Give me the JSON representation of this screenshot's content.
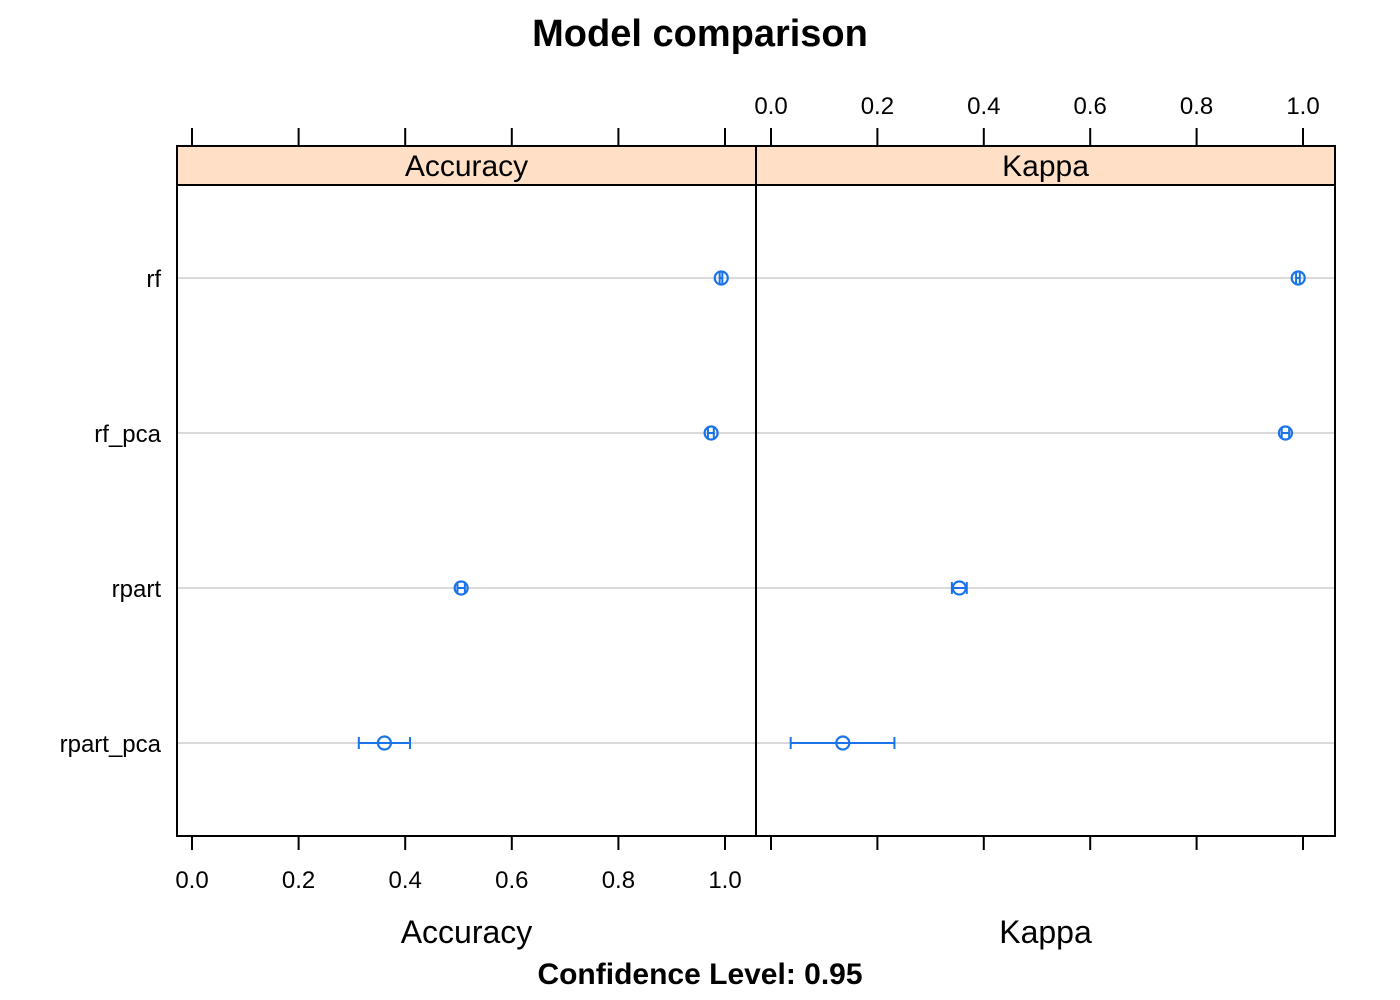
{
  "chart_data": {
    "type": "dotplot",
    "title": "Model comparison",
    "subtitle": "Confidence Level: 0.95",
    "categories": [
      "rf",
      "rf_pca",
      "rpart",
      "rpart_pca"
    ],
    "xlim": [
      0,
      1
    ],
    "ticks": [
      "0.0",
      "0.2",
      "0.4",
      "0.6",
      "0.8",
      "1.0"
    ],
    "colors": {
      "point": "#1a73e8",
      "strip": "#ffe0c6",
      "grid": "#d9d9d9",
      "axis": "#000000"
    },
    "panels": [
      {
        "name": "Accuracy",
        "xlabel": "Accuracy",
        "points": [
          {
            "category": "rf",
            "estimate": 0.993,
            "lower": 0.99,
            "upper": 0.995
          },
          {
            "category": "rf_pca",
            "estimate": 0.974,
            "lower": 0.968,
            "upper": 0.979
          },
          {
            "category": "rpart",
            "estimate": 0.505,
            "lower": 0.498,
            "upper": 0.512
          },
          {
            "category": "rpart_pca",
            "estimate": 0.361,
            "lower": 0.313,
            "upper": 0.409
          }
        ]
      },
      {
        "name": "Kappa",
        "xlabel": "Kappa",
        "points": [
          {
            "category": "rf",
            "estimate": 0.991,
            "lower": 0.987,
            "upper": 0.994
          },
          {
            "category": "rf_pca",
            "estimate": 0.967,
            "lower": 0.96,
            "upper": 0.974
          },
          {
            "category": "rpart",
            "estimate": 0.354,
            "lower": 0.34,
            "upper": 0.368
          },
          {
            "category": "rpart_pca",
            "estimate": 0.135,
            "lower": 0.037,
            "upper": 0.232
          }
        ]
      }
    ]
  }
}
